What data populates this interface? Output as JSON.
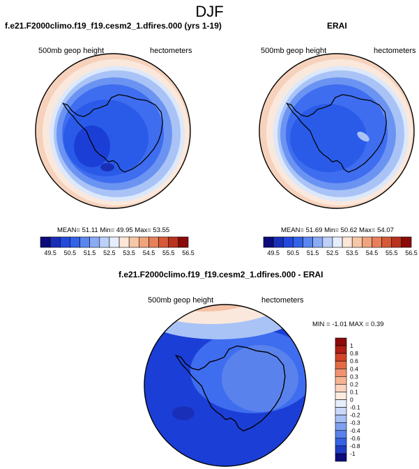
{
  "figure": {
    "title": "DJF",
    "variable": "500mb geop height",
    "units": "hectometers"
  },
  "colors": {
    "dark_navy": "#0b0b7a",
    "deep_blue": "#1b3fd6",
    "blue": "#2a5be8",
    "mid_blue": "#3f6df0",
    "light_blue": "#6b93f2",
    "pale_blue": "#a9c3f6",
    "very_pale_blue": "#dce8fb",
    "cream": "#fbe8dc",
    "peach": "#f5c2a5",
    "orange": "#ec8d5c",
    "red_orange": "#d8532d",
    "dark_red": "#8b0a0a"
  },
  "chart_data": [
    {
      "type": "heatmap",
      "projection": "south-polar-stereographic",
      "title": "f.e21.F2000climo.f19_f19.cesm2_1.dfires.000 (yrs 1-19)",
      "left_label": "500mb geop height",
      "right_label": "hectometers",
      "mean_label": "MEAN=",
      "mean": "51.11",
      "min_label": "Min=",
      "min": "49.95",
      "max_label": "Max=",
      "max": "53.55",
      "colorbar_ticks": [
        "49.5",
        "50.5",
        "51.5",
        "52.5",
        "53.5",
        "54.5",
        "55.5",
        "56.5"
      ]
    },
    {
      "type": "heatmap",
      "projection": "south-polar-stereographic",
      "title": "ERAI",
      "left_label": "500mb geop height",
      "right_label": "hectometers",
      "mean_label": "MEAN=",
      "mean": "51.69",
      "min_label": "Min=",
      "min": "50.62",
      "max_label": "Max=",
      "max": "54.07",
      "colorbar_ticks": [
        "49.5",
        "50.5",
        "51.5",
        "52.5",
        "53.5",
        "54.5",
        "55.5",
        "56.5"
      ]
    },
    {
      "type": "heatmap",
      "projection": "south-polar-stereographic",
      "title": "f.e21.F2000climo.f19_f19.cesm2_1.dfires.000 - ERAI",
      "left_label": "500mb geop height",
      "right_label": "hectometers",
      "minmax_label": "MIN = -1.01 MAX = 0.39",
      "colorbar_ticks": [
        "1",
        "0.8",
        "0.6",
        "0.4",
        "0.3",
        "0.2",
        "0.1",
        "0",
        "-0.1",
        "-0.2",
        "-0.3",
        "-0.4",
        "-0.6",
        "-0.8",
        "-1"
      ]
    }
  ]
}
